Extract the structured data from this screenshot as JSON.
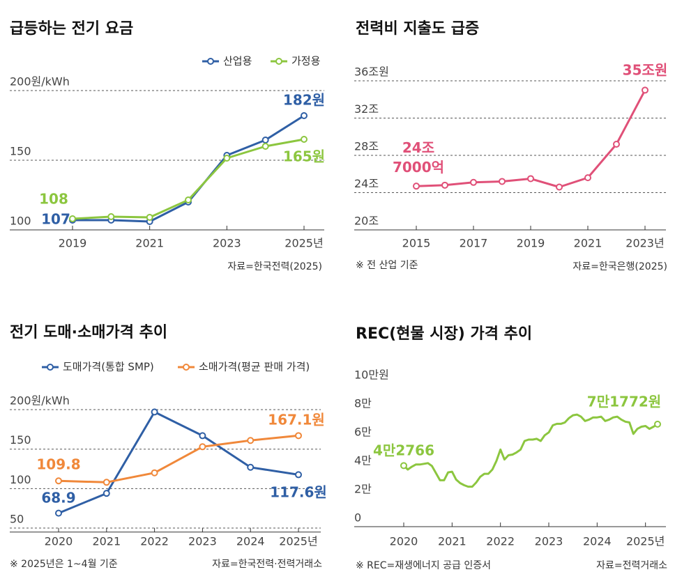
{
  "chart_data": [
    {
      "type": "line",
      "title": "급등하는 전기 요금",
      "categories": [
        "2019",
        null,
        "2021",
        null,
        "2023",
        null,
        "2025년"
      ],
      "series": [
        {
          "name": "산업용",
          "color": "#2f5fa5",
          "values": [
            107,
            107,
            106,
            120,
            153.5,
            164.5,
            182
          ],
          "value_labels": [
            "107",
            null,
            null,
            null,
            null,
            null,
            "182원"
          ]
        },
        {
          "name": "가정용",
          "color": "#8cc63f",
          "values": [
            108,
            109.5,
            109,
            121.5,
            151.5,
            160,
            165
          ],
          "value_labels": [
            "108",
            null,
            null,
            null,
            null,
            null,
            "165원"
          ]
        }
      ],
      "ylim": [
        100,
        215
      ],
      "yticks": [
        {
          "value": 200,
          "label": "200원/kWh"
        },
        150,
        100
      ],
      "grid": true,
      "source": "자료=한국전력(2025)"
    },
    {
      "type": "line",
      "title": "전력비 지출도 급증",
      "categories": [
        "2015",
        null,
        "2017",
        null,
        "2019",
        null,
        "2021",
        null,
        "2023년"
      ],
      "series": [
        {
          "color": "#e05078",
          "values": [
            24.7,
            24.8,
            25.1,
            25.2,
            25.5,
            24.6,
            25.6,
            29.2,
            35
          ],
          "value_labels": [
            "24조 7000억",
            null,
            null,
            null,
            null,
            null,
            null,
            null,
            "35조원"
          ]
        }
      ],
      "ylim": [
        20,
        37.5
      ],
      "yticks": [
        {
          "value": 36,
          "label": "36조원"
        },
        {
          "value": 32,
          "label": "32조"
        },
        {
          "value": 28,
          "label": "28조"
        },
        {
          "value": 24,
          "label": "24조"
        },
        {
          "value": 20,
          "label": "20조"
        }
      ],
      "grid": true,
      "note": "※ 전 산업 기준",
      "source": "자료=한국은행(2025)"
    },
    {
      "type": "line",
      "title": "전기 도매·소매가격 추이",
      "categories": [
        "2020",
        "2021",
        "2022",
        "2023",
        "2024",
        "2025년"
      ],
      "series": [
        {
          "name": "도매가격(통합 SMP)",
          "color": "#2f5fa5",
          "values": [
            68.9,
            94,
            197,
            167,
            127,
            117.6
          ],
          "value_labels": [
            "68.9",
            null,
            null,
            null,
            null,
            "117.6원"
          ]
        },
        {
          "name": "소매가격(평균 판매 가격)",
          "color": "#f0883a",
          "values": [
            109.8,
            108,
            120,
            153,
            161,
            167.1
          ],
          "value_labels": [
            "109.8",
            null,
            null,
            null,
            null,
            "167.1원"
          ]
        }
      ],
      "ylim": [
        45,
        210
      ],
      "yticks": [
        {
          "value": 200,
          "label": "200원/kWh"
        },
        150,
        100,
        50
      ],
      "grid": true,
      "note": "※ 2025년은 1~4월 기준",
      "source": "자료=한국전력·전력거래소"
    },
    {
      "type": "line",
      "title": "REC(현물 시장) 가격 추이",
      "categories": [
        "2020",
        null,
        null,
        null,
        null,
        null,
        null,
        null,
        null,
        null,
        null,
        null,
        "2021",
        null,
        null,
        null,
        null,
        null,
        null,
        null,
        null,
        null,
        null,
        null,
        "2022",
        null,
        null,
        null,
        null,
        null,
        null,
        null,
        null,
        null,
        null,
        null,
        "2023",
        null,
        null,
        null,
        null,
        null,
        null,
        null,
        null,
        null,
        null,
        null,
        "2024",
        null,
        null,
        null,
        null,
        null,
        null,
        null,
        null,
        null,
        null,
        null,
        "2025년",
        null,
        null,
        null
      ],
      "series": [
        {
          "color": "#8cc63f",
          "values": [
            42766,
            40000,
            42000,
            43500,
            43500,
            44000,
            44500,
            42500,
            37500,
            32500,
            32500,
            38000,
            38500,
            33000,
            30500,
            29000,
            28000,
            28000,
            31000,
            35000,
            37000,
            37000,
            40000,
            46000,
            54000,
            47000,
            50000,
            50500,
            52000,
            54000,
            60000,
            61000,
            61000,
            61500,
            60000,
            64000,
            66000,
            71000,
            72000,
            72000,
            73000,
            76000,
            78000,
            78500,
            77000,
            74000,
            75000,
            76500,
            76500,
            77000,
            74000,
            75000,
            76500,
            77000,
            75000,
            73500,
            73000,
            65000,
            68500,
            70000,
            70500,
            68500,
            70000,
            71772
          ],
          "value_labels": [
            "4만2766",
            null,
            null,
            null,
            null,
            null,
            null,
            null,
            null,
            null,
            null,
            null,
            null,
            null,
            null,
            null,
            null,
            null,
            null,
            null,
            null,
            null,
            null,
            null,
            null,
            null,
            null,
            null,
            null,
            null,
            null,
            null,
            null,
            null,
            null,
            null,
            null,
            null,
            null,
            null,
            null,
            null,
            null,
            null,
            null,
            null,
            null,
            null,
            null,
            null,
            null,
            null,
            null,
            null,
            null,
            null,
            null,
            null,
            null,
            null,
            null,
            null,
            null,
            "7만1772원"
          ]
        }
      ],
      "ylim": [
        0,
        105000
      ],
      "yticks": [
        {
          "value": 100000,
          "label": "10만원"
        },
        {
          "value": 80000,
          "label": "8만"
        },
        {
          "value": 60000,
          "label": "6만"
        },
        {
          "value": 40000,
          "label": "4만"
        },
        {
          "value": 20000,
          "label": "2만"
        },
        0
      ],
      "grid": false,
      "note": "※ REC=재생에너지 공급 인증서",
      "source": "자료=전력거래소"
    }
  ]
}
